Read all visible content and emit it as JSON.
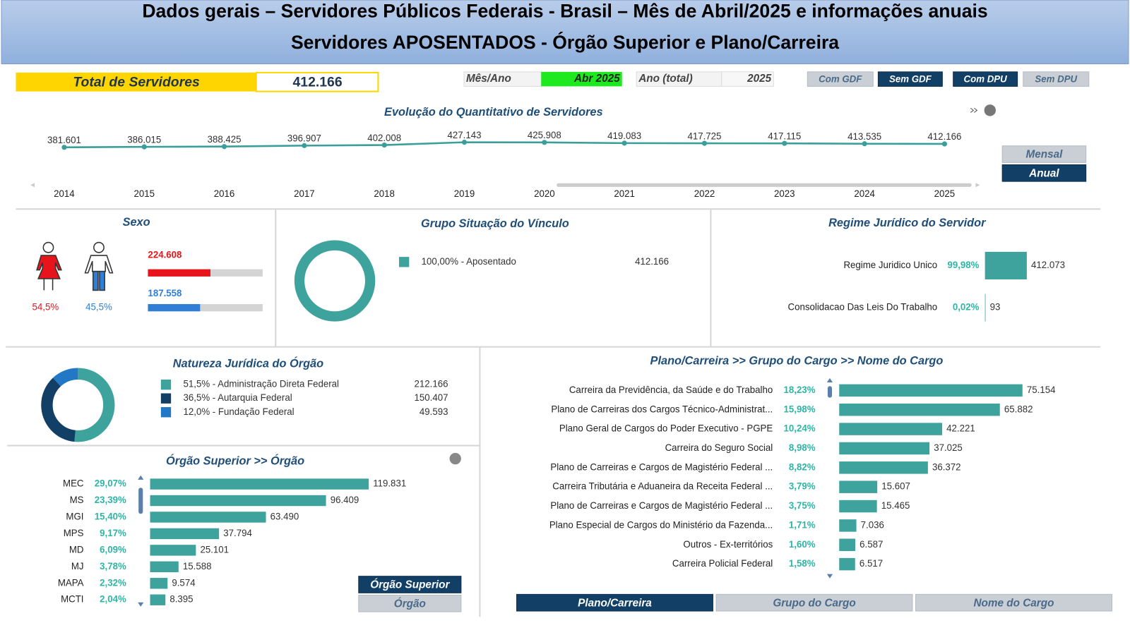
{
  "header": {
    "title": "Dados gerais – Servidores Públicos Federais - Brasil – Mês de Abril/2025 e informações anuais",
    "subtitle": "Servidores APOSENTADOS - Órgão Superior e Plano/Carreira"
  },
  "total": {
    "label": "Total de Servidores",
    "value": "412.166"
  },
  "filters": {
    "month_label": "Mês/Ano",
    "month_value": "Abr 2025",
    "year_label": "Ano (total)",
    "year_value": "2025"
  },
  "toggles": [
    "Com GDF",
    "Sem GDF",
    "Com DPU",
    "Sem DPU"
  ],
  "period_buttons": [
    "Mensal",
    "Anual"
  ],
  "orgao_buttons": [
    "Órgão Superior",
    "Órgão"
  ],
  "plano_buttons": [
    "Plano/Carreira",
    "Grupo do Cargo",
    "Nome do Cargo"
  ],
  "chart_data": [
    {
      "type": "line",
      "title": "Evolução do Quantitativo de Servidores",
      "color": "#3a9e9a",
      "categories": [
        "2014",
        "2015",
        "2016",
        "2017",
        "2018",
        "2019",
        "2020",
        "2021",
        "2022",
        "2023",
        "2024",
        "2025"
      ],
      "values": [
        381601,
        386015,
        388425,
        396907,
        402008,
        427143,
        425908,
        419083,
        417725,
        417115,
        413535,
        412166
      ],
      "value_labels": [
        "381.601",
        "386.015",
        "388.425",
        "396.907",
        "402.008",
        "427.143",
        "425.908",
        "419.083",
        "417.725",
        "417.115",
        "413.535",
        "412.166"
      ]
    },
    {
      "type": "bar",
      "title": "Sexo",
      "colors": [
        "#e8141b",
        "#2f7fd6"
      ],
      "values": [
        224608,
        187558
      ],
      "value_labels": [
        "224.608",
        "187.558"
      ],
      "percent_labels": [
        "54,5%",
        "45,5%"
      ]
    },
    {
      "type": "donut",
      "title": "Grupo Situação do Vínculo",
      "colors": [
        "#3fa39d"
      ],
      "legend_labels": [
        "100,00% - Aposentado"
      ],
      "values": [
        412166
      ],
      "value_labels": [
        "412.166"
      ]
    },
    {
      "type": "bar",
      "title": "Regime Jurídico do Servidor",
      "color": "#3fa39d",
      "categories": [
        "Regime Juridico Unico",
        "Consolidacao Das Leis Do Trabalho"
      ],
      "percent_labels": [
        "99,98%",
        "0,02%"
      ],
      "values": [
        412073,
        93
      ],
      "value_labels": [
        "412.073",
        "93"
      ]
    },
    {
      "type": "donut",
      "title": "Natureza Jurídica do Órgão",
      "colors": [
        "#3fa39d",
        "#123f66",
        "#2278c4"
      ],
      "legend_labels": [
        "51,5% - Administração Direta Federal",
        "36,5% - Autarquia Federal",
        "12,0% - Fundação Federal"
      ],
      "values": [
        212166,
        150407,
        49593
      ],
      "value_labels": [
        "212.166",
        "150.407",
        "49.593"
      ]
    },
    {
      "type": "bar",
      "title": "Órgão Superior >> Órgão",
      "color": "#3fa39d",
      "categories": [
        "MEC",
        "MS",
        "MGI",
        "MPS",
        "MD",
        "MJ",
        "MAPA",
        "MCTI"
      ],
      "percent_labels": [
        "29,07%",
        "23,39%",
        "15,40%",
        "9,17%",
        "6,09%",
        "3,78%",
        "2,32%",
        "2,04%"
      ],
      "values": [
        119831,
        96409,
        63490,
        37794,
        25101,
        15588,
        9574,
        8395
      ],
      "value_labels": [
        "119.831",
        "96.409",
        "63.490",
        "37.794",
        "25.101",
        "15.588",
        "9.574",
        "8.395"
      ]
    },
    {
      "type": "bar",
      "title": "Plano/Carreira >> Grupo do Cargo >> Nome do Cargo",
      "color": "#3fa39d",
      "categories": [
        "Carreira da Previdência, da Saúde e do Trabalho",
        "Plano de Carreiras dos Cargos Técnico-Administrat...",
        "Plano Geral de Cargos do Poder Executivo - PGPE",
        "Carreira do Seguro Social",
        "Plano de Carreiras e Cargos de Magistério Federal ...",
        "Carreira Tributária e Aduaneira da Receita Federal ...",
        "Plano de Carreiras e Cargos de Magistério Federal ...",
        "Plano Especial de Cargos do Ministério da Fazenda...",
        "Outros - Ex-territórios",
        "Carreira Policial Federal"
      ],
      "percent_labels": [
        "18,23%",
        "15,98%",
        "10,24%",
        "8,98%",
        "8,82%",
        "3,79%",
        "3,75%",
        "1,71%",
        "1,60%",
        "1,58%"
      ],
      "values": [
        75154,
        65882,
        42221,
        37025,
        36372,
        15607,
        15465,
        7036,
        6587,
        6517
      ],
      "value_labels": [
        "75.154",
        "65.882",
        "42.221",
        "37.025",
        "36.372",
        "15.607",
        "15.465",
        "7.036",
        "6.587",
        "6.517"
      ]
    }
  ]
}
